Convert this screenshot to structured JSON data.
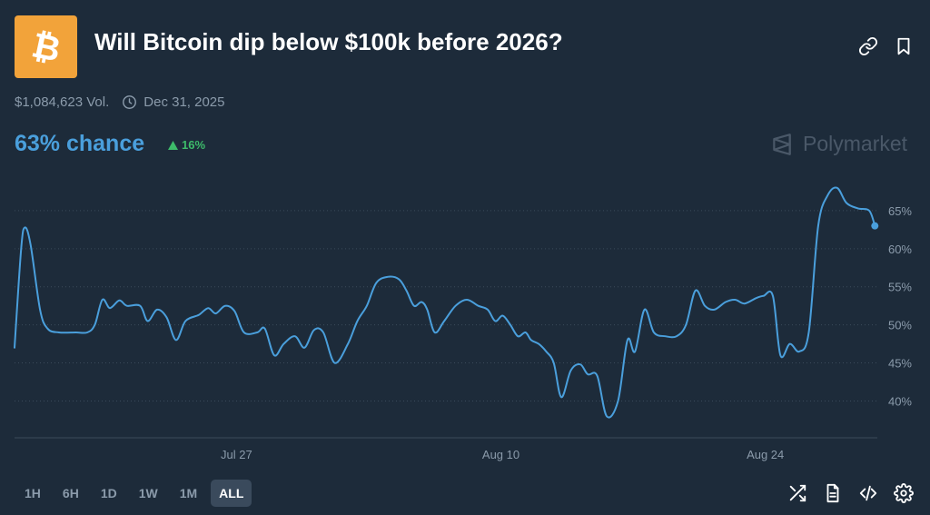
{
  "market": {
    "title": "Will Bitcoin dip below $100k before 2026?",
    "logo_icon": "bitcoin-icon",
    "volume": "$1,084,623 Vol.",
    "end_date": "Dec 31, 2025",
    "chance": "63% chance",
    "change": "16%",
    "change_direction": "up"
  },
  "brand": {
    "name": "Polymarket"
  },
  "header_icons": [
    "link-icon",
    "bookmark-icon"
  ],
  "timeframes": [
    "1H",
    "6H",
    "1D",
    "1W",
    "1M",
    "ALL"
  ],
  "active_timeframe": "ALL",
  "footer_icons": [
    "shuffle-icon",
    "document-icon",
    "embed-code-icon",
    "settings-icon"
  ],
  "colors": {
    "background": "#1d2b3a",
    "line": "#4a9fdc",
    "logo": "#f2a33a",
    "positive": "#3dbb6a",
    "muted": "#8b9bab"
  },
  "chart_data": {
    "type": "line",
    "y_unit": "%",
    "y_ticks": [
      "40%",
      "45%",
      "50%",
      "55%",
      "60%",
      "65%"
    ],
    "y_range": [
      36,
      70
    ],
    "grid": true,
    "x_ticks": [
      {
        "label": "Jul 27",
        "day": 13
      },
      {
        "label": "Aug 10",
        "day": 27
      },
      {
        "label": "Aug 24",
        "day": 41
      }
    ],
    "x_range": [
      1.25,
      45.4
    ],
    "series": [
      {
        "values": [
          [
            1.25,
            47
          ],
          [
            1.6,
            60
          ],
          [
            1.8,
            62.8
          ],
          [
            2.1,
            60.5
          ],
          [
            2.6,
            52
          ],
          [
            3.0,
            49.5
          ],
          [
            3.6,
            49
          ],
          [
            4.5,
            49
          ],
          [
            5.1,
            49
          ],
          [
            5.5,
            50
          ],
          [
            5.9,
            53.3
          ],
          [
            6.3,
            52.2
          ],
          [
            6.8,
            53.2
          ],
          [
            7.2,
            52.5
          ],
          [
            7.9,
            52.5
          ],
          [
            8.3,
            50.5
          ],
          [
            8.8,
            52
          ],
          [
            9.3,
            51
          ],
          [
            9.8,
            48
          ],
          [
            10.3,
            50.5
          ],
          [
            11.0,
            51.3
          ],
          [
            11.5,
            52.2
          ],
          [
            11.9,
            51.5
          ],
          [
            12.4,
            52.5
          ],
          [
            12.9,
            51.8
          ],
          [
            13.4,
            49
          ],
          [
            14.1,
            49
          ],
          [
            14.5,
            49.5
          ],
          [
            15.0,
            46
          ],
          [
            15.5,
            47.5
          ],
          [
            16.1,
            48.5
          ],
          [
            16.6,
            47
          ],
          [
            17.1,
            49.3
          ],
          [
            17.6,
            49
          ],
          [
            18.2,
            45
          ],
          [
            18.9,
            47.5
          ],
          [
            19.4,
            50.5
          ],
          [
            19.9,
            52.5
          ],
          [
            20.4,
            55.5
          ],
          [
            21.0,
            56.3
          ],
          [
            21.6,
            56
          ],
          [
            22.0,
            54.5
          ],
          [
            22.4,
            52.5
          ],
          [
            22.8,
            53
          ],
          [
            23.1,
            52
          ],
          [
            23.5,
            49
          ],
          [
            24.0,
            50.5
          ],
          [
            24.6,
            52.5
          ],
          [
            25.2,
            53.3
          ],
          [
            25.8,
            52.5
          ],
          [
            26.3,
            52
          ],
          [
            26.7,
            50.5
          ],
          [
            27.1,
            51.2
          ],
          [
            27.5,
            50
          ],
          [
            27.9,
            48.5
          ],
          [
            28.3,
            49
          ],
          [
            28.6,
            48
          ],
          [
            29.0,
            47.5
          ],
          [
            29.4,
            46.5
          ],
          [
            29.8,
            45
          ],
          [
            30.2,
            40.5
          ],
          [
            30.7,
            44
          ],
          [
            31.2,
            44.8
          ],
          [
            31.6,
            43.5
          ],
          [
            32.1,
            43.3
          ],
          [
            32.6,
            38
          ],
          [
            33.2,
            40
          ],
          [
            33.7,
            48
          ],
          [
            34.1,
            46.5
          ],
          [
            34.6,
            52
          ],
          [
            35.1,
            49
          ],
          [
            35.7,
            48.5
          ],
          [
            36.3,
            48.5
          ],
          [
            36.8,
            50
          ],
          [
            37.3,
            54.5
          ],
          [
            37.8,
            52.5
          ],
          [
            38.3,
            52
          ],
          [
            38.9,
            53
          ],
          [
            39.4,
            53.3
          ],
          [
            39.9,
            52.8
          ],
          [
            40.5,
            53.5
          ],
          [
            40.9,
            53.8
          ],
          [
            41.4,
            53.8
          ],
          [
            41.8,
            46
          ],
          [
            42.3,
            47.5
          ],
          [
            42.8,
            46.5
          ],
          [
            43.3,
            49
          ],
          [
            43.8,
            63
          ],
          [
            44.3,
            67
          ],
          [
            44.8,
            68
          ],
          [
            45.3,
            66
          ],
          [
            45.9,
            65.3
          ],
          [
            46.5,
            65
          ],
          [
            46.8,
            63
          ]
        ]
      }
    ]
  }
}
